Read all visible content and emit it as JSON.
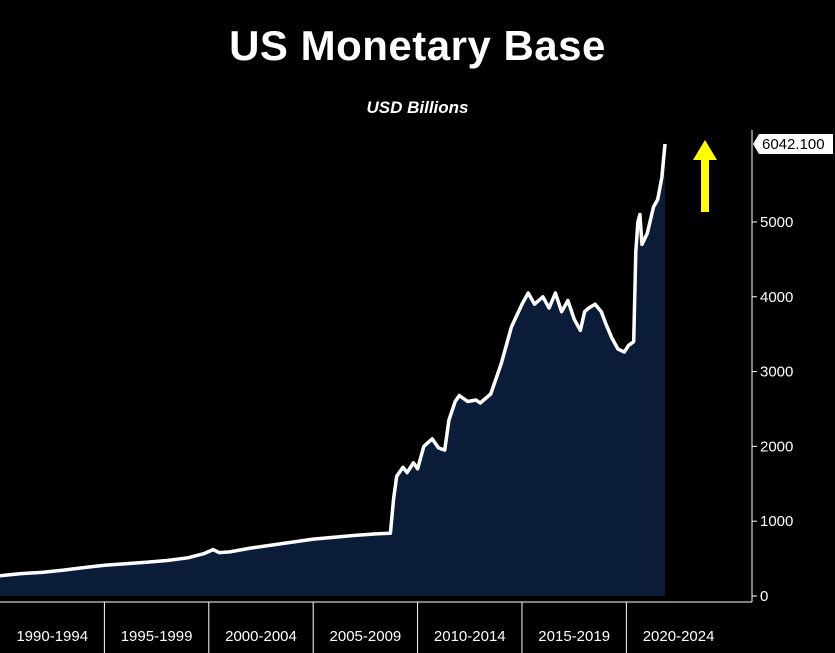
{
  "chart_data": {
    "type": "area",
    "title": "US Monetary Base",
    "subtitle": "USD Billions",
    "xlabel": "",
    "ylabel": "",
    "ylim": [
      0,
      6042.1
    ],
    "yticks": [
      0,
      1000,
      2000,
      3000,
      4000,
      5000
    ],
    "last_value_label": "6042.100",
    "categories": [
      "1990-1994",
      "1995-1999",
      "2000-2004",
      "2005-2009",
      "2010-2014",
      "2015-2019",
      "2020-2024"
    ],
    "xlim": [
      1990.0,
      2024.9
    ],
    "series": [
      {
        "values": [
          [
            1990.0,
            270
          ],
          [
            1991.0,
            300
          ],
          [
            1992.0,
            315
          ],
          [
            1993.0,
            345
          ],
          [
            1994.0,
            380
          ],
          [
            1995.0,
            410
          ],
          [
            1996.0,
            430
          ],
          [
            1997.0,
            450
          ],
          [
            1998.0,
            475
          ],
          [
            1999.0,
            510
          ],
          [
            1999.8,
            570
          ],
          [
            2000.2,
            620
          ],
          [
            2000.5,
            580
          ],
          [
            2001.0,
            590
          ],
          [
            2002.0,
            640
          ],
          [
            2003.0,
            680
          ],
          [
            2004.0,
            720
          ],
          [
            2005.0,
            760
          ],
          [
            2006.0,
            785
          ],
          [
            2007.0,
            810
          ],
          [
            2008.0,
            830
          ],
          [
            2008.7,
            840
          ],
          [
            2008.85,
            1300
          ],
          [
            2009.0,
            1600
          ],
          [
            2009.3,
            1720
          ],
          [
            2009.5,
            1650
          ],
          [
            2009.8,
            1780
          ],
          [
            2010.0,
            1700
          ],
          [
            2010.3,
            2000
          ],
          [
            2010.5,
            2050
          ],
          [
            2010.7,
            2100
          ],
          [
            2011.0,
            1980
          ],
          [
            2011.3,
            1950
          ],
          [
            2011.5,
            2350
          ],
          [
            2011.8,
            2600
          ],
          [
            2012.0,
            2680
          ],
          [
            2012.4,
            2600
          ],
          [
            2012.8,
            2620
          ],
          [
            2013.0,
            2580
          ],
          [
            2013.5,
            2700
          ],
          [
            2014.0,
            3100
          ],
          [
            2014.5,
            3600
          ],
          [
            2015.0,
            3900
          ],
          [
            2015.3,
            4050
          ],
          [
            2015.6,
            3900
          ],
          [
            2016.0,
            4000
          ],
          [
            2016.3,
            3850
          ],
          [
            2016.6,
            4050
          ],
          [
            2016.9,
            3800
          ],
          [
            2017.2,
            3950
          ],
          [
            2017.5,
            3700
          ],
          [
            2017.8,
            3550
          ],
          [
            2018.0,
            3800
          ],
          [
            2018.2,
            3850
          ],
          [
            2018.5,
            3900
          ],
          [
            2018.8,
            3800
          ],
          [
            2019.0,
            3650
          ],
          [
            2019.3,
            3450
          ],
          [
            2019.6,
            3300
          ],
          [
            2019.9,
            3260
          ],
          [
            2020.1,
            3350
          ],
          [
            2020.35,
            3400
          ],
          [
            2020.45,
            4600
          ],
          [
            2020.55,
            5000
          ],
          [
            2020.65,
            5100
          ],
          [
            2020.75,
            4700
          ],
          [
            2021.0,
            4850
          ],
          [
            2021.3,
            5200
          ],
          [
            2021.5,
            5300
          ],
          [
            2021.7,
            5600
          ],
          [
            2021.85,
            6042.1
          ]
        ]
      }
    ],
    "grid": false,
    "colors": {
      "line": "#ffffff",
      "fill": "#0b1c38",
      "arrow": "#ffff00",
      "background": "#000000"
    },
    "annotation": "yellow-up-arrow"
  }
}
